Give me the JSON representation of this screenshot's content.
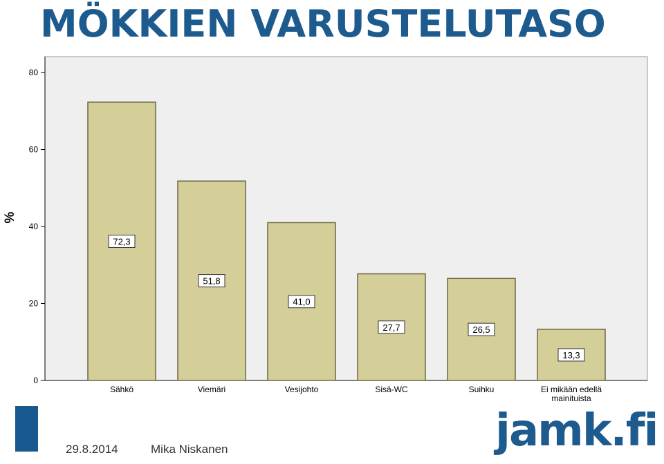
{
  "page": {
    "title": "MÖKKIEN VARUSTELUTASO",
    "footer": {
      "date": "29.8.2014",
      "author": "Mika Niskanen"
    },
    "logo": "jamk.fi"
  },
  "colors": {
    "title": "#1d5a8e",
    "bar_fill": "#d4ce98",
    "bar_stroke": "#6b6842",
    "plot_bg": "#efefef",
    "accent": "#17598f"
  },
  "chart_data": {
    "type": "bar",
    "title": "",
    "xlabel": "",
    "ylabel": "%",
    "ylim": [
      0,
      80
    ],
    "yticks": [
      0,
      20,
      40,
      60,
      80
    ],
    "grid": false,
    "categories": [
      [
        "Sähkö"
      ],
      [
        "Viemäri"
      ],
      [
        "Vesijohto"
      ],
      [
        "Sisä-WC"
      ],
      [
        "Suihku"
      ],
      [
        "Ei mikään edellä",
        "mainituista"
      ]
    ],
    "values": [
      72.3,
      51.8,
      41.0,
      27.7,
      26.5,
      13.3
    ],
    "data_labels": [
      "72,3",
      "51,8",
      "41,0",
      "27,7",
      "26,5",
      "13,3"
    ]
  }
}
